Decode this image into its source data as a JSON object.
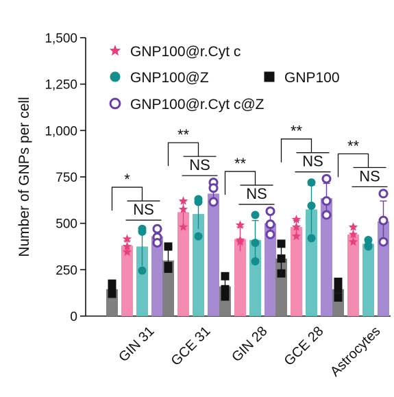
{
  "chart_data": {
    "type": "bar",
    "ylabel": "Number of GNPs per cell",
    "ylim": [
      0,
      1500
    ],
    "yticks": [
      0,
      250,
      500,
      750,
      1000,
      1250,
      1500
    ],
    "ytick_labels": [
      "0",
      "250",
      "500",
      "750",
      "1,000",
      "1,250",
      "1,500"
    ],
    "categories": [
      "GIN 31",
      "GCE 31",
      "GIN 28",
      "GCE 28",
      "Astrocytes"
    ],
    "series": [
      {
        "name": "GNP100",
        "color": "#808080",
        "marker": "square",
        "marker_color": "#111111",
        "values": [
          145,
          300,
          160,
          310,
          145
        ],
        "errors": [
          30,
          55,
          45,
          70,
          40
        ],
        "points": [
          [
            175,
            145,
            120
          ],
          [
            375,
            270,
            255
          ],
          [
            215,
            145,
            105
          ],
          [
            390,
            310,
            230
          ],
          [
            185,
            145,
            100
          ]
        ]
      },
      {
        "name": "GNP100@r.Cyt c",
        "color": "#f48bb1",
        "marker": "star",
        "marker_color": "#e8407e",
        "values": [
          380,
          560,
          415,
          480,
          440
        ],
        "errors": [
          25,
          60,
          65,
          35,
          40
        ],
        "points": [
          [
            415,
            375,
            345
          ],
          [
            620,
            575,
            480
          ],
          [
            490,
            410,
            400
          ],
          [
            520,
            480,
            430
          ],
          [
            480,
            440,
            400
          ]
        ]
      },
      {
        "name": "GNP100@Z",
        "color": "#68c3c3",
        "marker": "circle",
        "marker_color": "#138e8e",
        "values": [
          375,
          550,
          410,
          575,
          390
        ],
        "errors": [
          105,
          80,
          105,
          130,
          25
        ],
        "points": [
          [
            470,
            455,
            245
          ],
          [
            630,
            615,
            430
          ],
          [
            545,
            395,
            295
          ],
          [
            720,
            595,
            420
          ],
          [
            410,
            380,
            375
          ]
        ]
      },
      {
        "name": "GNP100@r.Cyt c@Z",
        "color": "#a68ad2",
        "marker": "open-circle",
        "marker_color": "#6b3fa8",
        "values": [
          430,
          660,
          500,
          635,
          510
        ],
        "errors": [
          50,
          50,
          50,
          80,
          110
        ],
        "points": [
          [
            470,
            425,
            395
          ],
          [
            720,
            690,
            615
          ],
          [
            565,
            495,
            440
          ],
          [
            740,
            620,
            545
          ],
          [
            660,
            515,
            400
          ]
        ]
      }
    ],
    "legend": {
      "placement": "top",
      "order": [
        "GNP100@r.Cyt c",
        "GNP100@Z",
        "GNP100",
        "GNP100@r.Cyt c@Z"
      ]
    },
    "annotations": [
      {
        "category": "GIN 31",
        "outer": "*",
        "inner": "NS"
      },
      {
        "category": "GCE 31",
        "outer": "**",
        "inner": "NS"
      },
      {
        "category": "GIN 28",
        "outer": "**",
        "inner": "NS"
      },
      {
        "category": "GCE 28",
        "outer": "**",
        "inner": "NS"
      },
      {
        "category": "Astrocytes",
        "outer": "**",
        "inner": "NS"
      }
    ],
    "grid": false
  }
}
